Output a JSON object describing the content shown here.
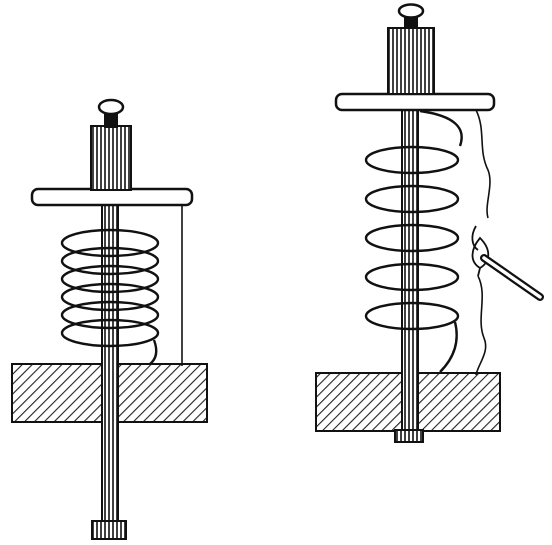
{
  "figure": {
    "title": "",
    "caption": "",
    "panels": [
      {
        "id": "left",
        "spring_state": "compressed",
        "thread": "intact"
      },
      {
        "id": "right",
        "spring_state": "extended",
        "thread": "burning",
        "flame": true
      }
    ]
  },
  "colors": {
    "ink": "#111111",
    "paper": "#ffffff",
    "hatch": "#222222"
  }
}
